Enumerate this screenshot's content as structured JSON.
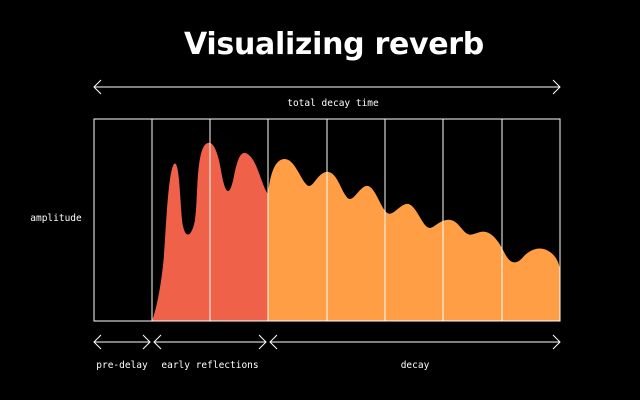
{
  "title": "Visualizing reverb",
  "labels": {
    "total": "total decay time",
    "amplitude": "amplitude",
    "pre_delay": "pre-delay",
    "early_reflections": "early reflections",
    "decay": "decay"
  },
  "colors": {
    "background": "#000000",
    "text": "#ffffff",
    "early_reflections": "#f0614a",
    "decay": "#ff9e45",
    "grid": "#ffffff"
  }
}
